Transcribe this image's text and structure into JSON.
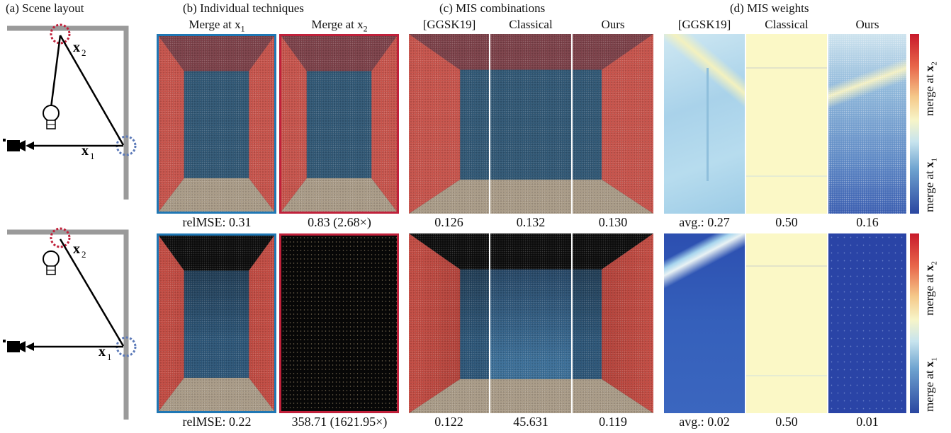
{
  "headers": {
    "a": "(a) Scene layout",
    "b": "(b) Individual techniques",
    "c": "(c) MIS combinations",
    "d": "(d) MIS weights"
  },
  "subheaders": {
    "merge_x1": "Merge at x",
    "merge_x1_sub": "1",
    "merge_x2": "Merge at x",
    "merge_x2_sub": "2",
    "ggsk19_c": "[GGSK19]",
    "classical_c": "Classical",
    "ours_c": "Ours",
    "ggsk19_d": "[GGSK19]",
    "classical_d": "Classical",
    "ours_d": "Ours"
  },
  "layout_labels": {
    "x1": "x",
    "x1_sub": "1",
    "x2": "x",
    "x2_sub": "2"
  },
  "colorbar": {
    "top_label": "merge at ",
    "top_bold": "x",
    "top_sub": "2",
    "bottom_label": "merge at ",
    "bottom_bold": "x",
    "bottom_sub": "1",
    "colors": [
      "#c81a2b",
      "#f7f5c8",
      "#2a46a0"
    ]
  },
  "rows": [
    {
      "relmse_x1": "relMSE: 0.31",
      "relmse_x2": "0.83 (2.68×)",
      "ggsk19": "0.126",
      "classical": "0.132",
      "ours": "0.130",
      "w_ggsk19": "avg.: 0.27",
      "w_classical": "0.50",
      "w_ours": "0.16"
    },
    {
      "relmse_x1": "relMSE: 0.22",
      "relmse_x2": "358.71 (1621.95×)",
      "ggsk19": "0.122",
      "classical": "45.631",
      "ours": "0.119",
      "w_ggsk19": "avg.: 0.02",
      "w_classical": "0.50",
      "w_ours": "0.01"
    }
  ],
  "colors": {
    "x1_frame": "#1f77b4",
    "x2_frame": "#c0203a"
  }
}
